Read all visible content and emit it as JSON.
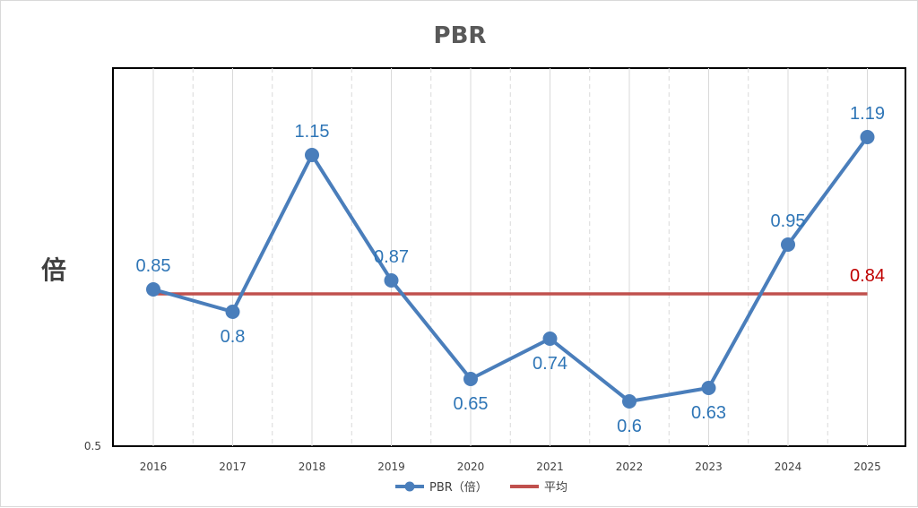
{
  "chart_data": {
    "type": "line",
    "title": "PBR",
    "ylabel": "倍",
    "xlabel": "",
    "categories": [
      "2016",
      "2017",
      "2018",
      "2019",
      "2020",
      "2021",
      "2022",
      "2023",
      "2024",
      "2025"
    ],
    "series": [
      {
        "name": "PBR（倍）",
        "values": [
          0.85,
          0.8,
          1.15,
          0.87,
          0.65,
          0.74,
          0.6,
          0.63,
          0.95,
          1.19
        ],
        "labels": [
          "0.85",
          "0.8",
          "1.15",
          "0.87",
          "0.65",
          "0.74",
          "0.6",
          "0.63",
          "0.95",
          "1.19"
        ],
        "color": "#4a7ebb",
        "marker": "circle"
      },
      {
        "name": "平均",
        "values": [
          0.84,
          0.84,
          0.84,
          0.84,
          0.84,
          0.84,
          0.84,
          0.84,
          0.84,
          0.84
        ],
        "end_label": "0.84",
        "color": "#c0504d"
      }
    ],
    "y_tick_labels": [
      "0.5"
    ],
    "ylim": [
      0.5,
      1.25
    ],
    "grid": true,
    "legend": "bottom"
  }
}
